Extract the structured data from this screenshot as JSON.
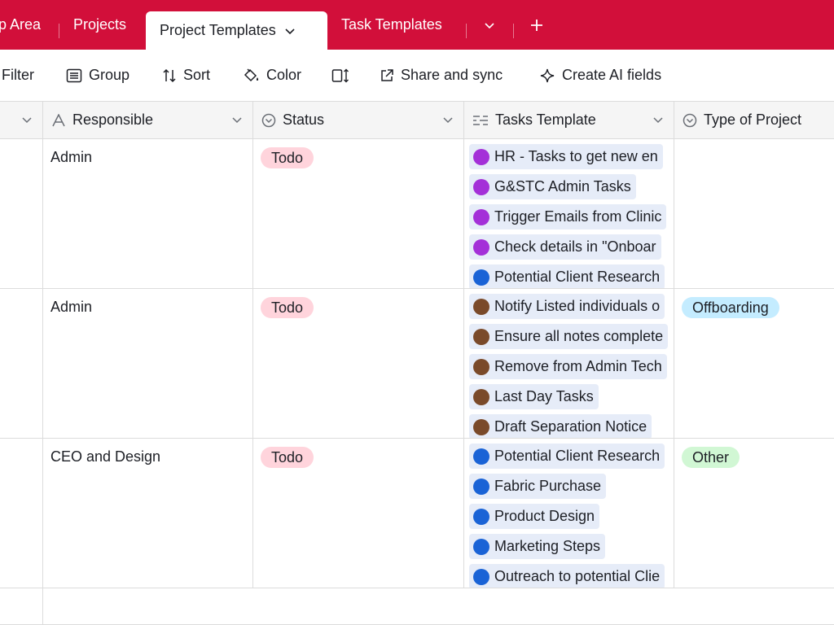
{
  "tabs": {
    "items": [
      {
        "label": "p Area"
      },
      {
        "label": "Projects"
      },
      {
        "label": "Project Templates",
        "active": true
      },
      {
        "label": "Task Templates"
      }
    ],
    "more_icon": "chevron-down-icon",
    "add_icon": "plus-icon"
  },
  "toolbar": {
    "filter": "Filter",
    "group": "Group",
    "sort": "Sort",
    "color": "Color",
    "share": "Share and sync",
    "ai": "Create AI fields"
  },
  "columns": {
    "responsible": "Responsible",
    "status": "Status",
    "tasks_template": "Tasks Template",
    "type_of_project": "Type of Project"
  },
  "colors": {
    "brand": "#d20f3a",
    "purple": "#a430d8",
    "blue": "#1a63d6",
    "brown": "#7a4a2a"
  },
  "rows": [
    {
      "responsible": "Admin",
      "status": "Todo",
      "type": "",
      "tasks": [
        {
          "label": "HR - Tasks to get new en",
          "color": "purple"
        },
        {
          "label": "G&STC Admin Tasks",
          "color": "purple"
        },
        {
          "label": "Trigger Emails from Clinic",
          "color": "purple"
        },
        {
          "label": "Check details in \"Onboar",
          "color": "purple"
        },
        {
          "label": "Potential Client Research",
          "color": "blue"
        }
      ]
    },
    {
      "responsible": "Admin",
      "status": "Todo",
      "type": "Offboarding",
      "tasks": [
        {
          "label": "Notify Listed individuals o",
          "color": "brown"
        },
        {
          "label": "Ensure all notes complete",
          "color": "brown"
        },
        {
          "label": "Remove from Admin Tech",
          "color": "brown"
        },
        {
          "label": "Last Day Tasks",
          "color": "brown"
        },
        {
          "label": "Draft Separation Notice",
          "color": "brown"
        }
      ]
    },
    {
      "responsible": "CEO and Design",
      "status": "Todo",
      "type": "Other",
      "tasks": [
        {
          "label": "Potential Client Research",
          "color": "blue"
        },
        {
          "label": "Fabric Purchase",
          "color": "blue"
        },
        {
          "label": "Product Design",
          "color": "blue"
        },
        {
          "label": "Marketing Steps",
          "color": "blue"
        },
        {
          "label": "Outreach to potential Clie",
          "color": "blue"
        }
      ]
    }
  ]
}
